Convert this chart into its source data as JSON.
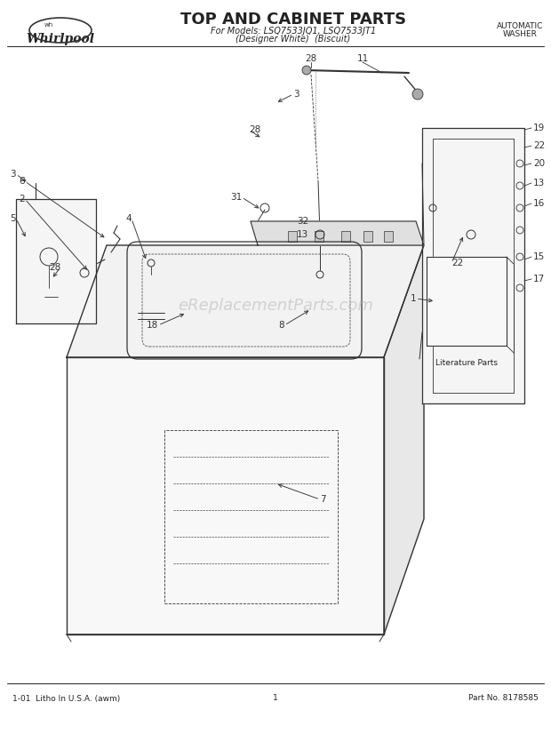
{
  "title": "TOP AND CABINET PARTS",
  "subtitle_line1": "For Models: LSQ7533JQ1, LSQ7533JT1",
  "subtitle_line2": "(Designer White)  (Biscuit)",
  "brand": "Whirlpool",
  "top_right_text": "AUTOMATIC\nWASHER",
  "bottom_left_text": "1-01  Litho In U.S.A. (awm)",
  "bottom_center_text": "1",
  "bottom_right_text": "Part No. 8178585",
  "watermark": "eReplacementParts.com",
  "bg_color": "#ffffff",
  "line_color": "#333333",
  "text_color": "#222222",
  "watermark_color": "#bbbbbb"
}
